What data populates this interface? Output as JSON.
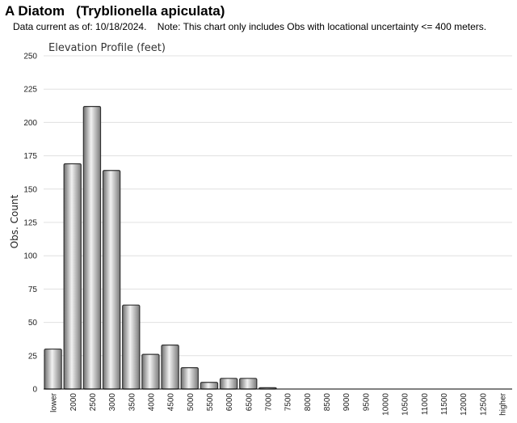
{
  "header": {
    "title": "A Diatom   (Tryblionella apiculata)",
    "subtitle": "Data current as of: 10/18/2024.    Note: This chart only includes Obs with locational uncertainty <= 400 meters."
  },
  "chart_data": {
    "type": "bar",
    "title": "Elevation Profile (feet)",
    "xlabel": "",
    "ylabel": "Obs. Count",
    "ylim": [
      0,
      250
    ],
    "yticks": [
      0,
      25,
      50,
      75,
      100,
      125,
      150,
      175,
      200,
      225,
      250
    ],
    "grid": true,
    "categories": [
      "lower",
      "2000",
      "2500",
      "3000",
      "3500",
      "4000",
      "4500",
      "5000",
      "5500",
      "6000",
      "6500",
      "7000",
      "7500",
      "8000",
      "8500",
      "9000",
      "9500",
      "10000",
      "10500",
      "11000",
      "11500",
      "12000",
      "12500",
      "higher"
    ],
    "values": [
      30,
      169,
      212,
      164,
      63,
      26,
      33,
      16,
      5,
      8,
      8,
      1,
      0,
      0,
      0,
      0,
      0,
      0,
      0,
      0,
      0,
      0,
      0,
      0
    ],
    "colors": {
      "bar_light": "#f2f2f2",
      "bar_dark": "#6f6f6f",
      "bar_stroke": "#333333",
      "grid": "#e0e0e0",
      "axis": "#000000"
    }
  }
}
